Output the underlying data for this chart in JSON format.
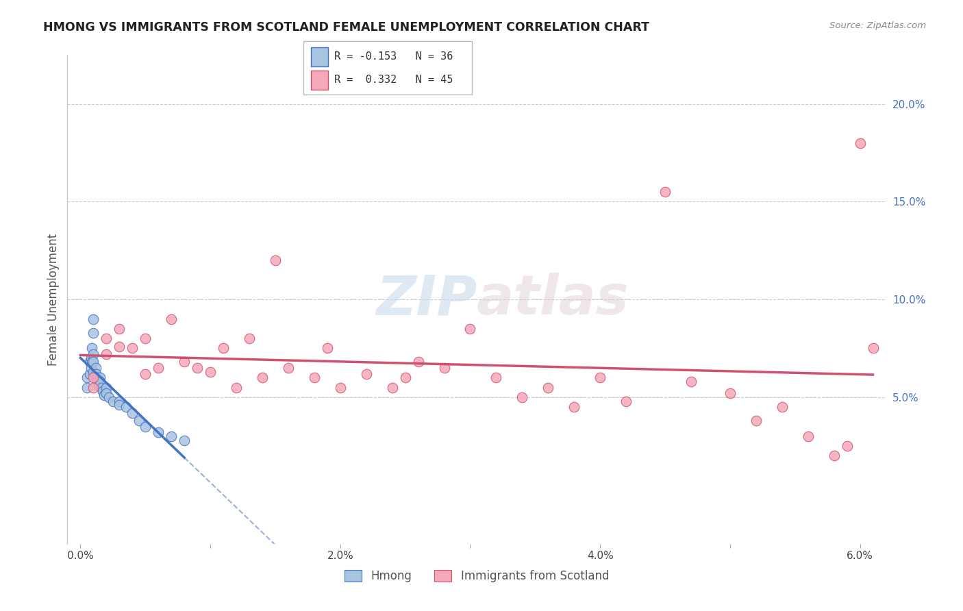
{
  "title": "HMONG VS IMMIGRANTS FROM SCOTLAND FEMALE UNEMPLOYMENT CORRELATION CHART",
  "source": "Source: ZipAtlas.com",
  "ylabel": "Female Unemployment",
  "xlim": [
    -0.001,
    0.062
  ],
  "ylim": [
    -0.025,
    0.225
  ],
  "xticks": [
    0.0,
    0.01,
    0.02,
    0.03,
    0.04,
    0.05,
    0.06
  ],
  "xtick_labels": [
    "0.0%",
    "",
    "2.0%",
    "",
    "4.0%",
    "",
    "6.0%"
  ],
  "yticks_right": [
    0.05,
    0.1,
    0.15,
    0.2
  ],
  "ytick_labels_right": [
    "5.0%",
    "10.0%",
    "15.0%",
    "20.0%"
  ],
  "color_hmong": "#a8c4e0",
  "color_scotland": "#f4a8b8",
  "line_color_hmong": "#4472c4",
  "line_color_scotland": "#d05070",
  "watermark_zip": "ZIP",
  "watermark_atlas": "atlas",
  "legend_label1": "Hmong",
  "legend_label2": "Immigrants from Scotland",
  "hmong_x": [
    0.0005,
    0.0005,
    0.0007,
    0.0007,
    0.0008,
    0.0008,
    0.0009,
    0.0009,
    0.001,
    0.001,
    0.001,
    0.001,
    0.001,
    0.0012,
    0.0012,
    0.0013,
    0.0013,
    0.0014,
    0.0015,
    0.0015,
    0.0016,
    0.0017,
    0.0018,
    0.002,
    0.002,
    0.0022,
    0.0025,
    0.003,
    0.003,
    0.0035,
    0.004,
    0.0045,
    0.005,
    0.006,
    0.007,
    0.008
  ],
  "hmong_y": [
    0.06,
    0.055,
    0.068,
    0.062,
    0.07,
    0.065,
    0.075,
    0.068,
    0.09,
    0.083,
    0.072,
    0.068,
    0.063,
    0.065,
    0.062,
    0.06,
    0.058,
    0.056,
    0.06,
    0.058,
    0.055,
    0.053,
    0.051,
    0.055,
    0.052,
    0.05,
    0.048,
    0.048,
    0.046,
    0.045,
    0.042,
    0.038,
    0.035,
    0.032,
    0.03,
    0.028
  ],
  "scotland_x": [
    0.001,
    0.001,
    0.002,
    0.002,
    0.003,
    0.003,
    0.004,
    0.005,
    0.005,
    0.006,
    0.007,
    0.008,
    0.009,
    0.01,
    0.011,
    0.012,
    0.013,
    0.014,
    0.015,
    0.016,
    0.018,
    0.019,
    0.02,
    0.022,
    0.024,
    0.025,
    0.026,
    0.028,
    0.03,
    0.032,
    0.034,
    0.036,
    0.038,
    0.04,
    0.042,
    0.045,
    0.047,
    0.05,
    0.052,
    0.054,
    0.056,
    0.058,
    0.059,
    0.06,
    0.061
  ],
  "scotland_y": [
    0.06,
    0.055,
    0.08,
    0.072,
    0.085,
    0.076,
    0.075,
    0.062,
    0.08,
    0.065,
    0.09,
    0.068,
    0.065,
    0.063,
    0.075,
    0.055,
    0.08,
    0.06,
    0.12,
    0.065,
    0.06,
    0.075,
    0.055,
    0.062,
    0.055,
    0.06,
    0.068,
    0.065,
    0.085,
    0.06,
    0.05,
    0.055,
    0.045,
    0.06,
    0.048,
    0.155,
    0.058,
    0.052,
    0.038,
    0.045,
    0.03,
    0.02,
    0.025,
    0.18,
    0.075
  ]
}
